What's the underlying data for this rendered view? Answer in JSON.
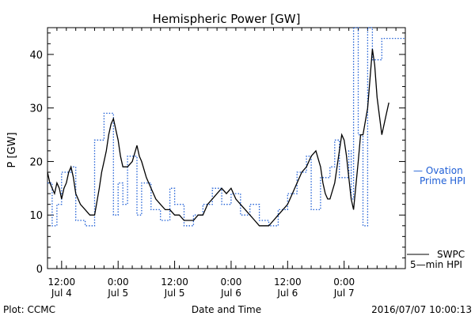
{
  "chart_data": {
    "type": "line",
    "title": "Hemispheric Power [GW]",
    "xlabel": "Date and Time",
    "ylabel": "P [GW]",
    "x_start": "2016-07-04 09:00",
    "x_end": "2016-07-07 13:00",
    "ylim": [
      0,
      45
    ],
    "y_ticks": [
      0,
      10,
      20,
      30,
      40
    ],
    "x_ticks": [
      {
        "t": "2016-07-04 12:00",
        "time": "12:00",
        "date": "Jul 4"
      },
      {
        "t": "2016-07-05 00:00",
        "time": "0:00",
        "date": "Jul 5"
      },
      {
        "t": "2016-07-05 12:00",
        "time": "12:00",
        "date": "Jul 5"
      },
      {
        "t": "2016-07-06 00:00",
        "time": "0:00",
        "date": "Jul 6"
      },
      {
        "t": "2016-07-06 12:00",
        "time": "12:00",
        "date": "Jul 6"
      },
      {
        "t": "2016-07-07 00:00",
        "time": "0:00",
        "date": "Jul 7"
      }
    ],
    "grid": false,
    "series": [
      {
        "name": "SWPC 5-min HPI",
        "color": "#000000",
        "style": "solid",
        "points": [
          [
            "2016-07-04 09:00",
            18
          ],
          [
            "2016-07-04 09:30",
            16
          ],
          [
            "2016-07-04 10:00",
            15
          ],
          [
            "2016-07-04 10:30",
            14
          ],
          [
            "2016-07-04 11:00",
            16
          ],
          [
            "2016-07-04 11:30",
            15
          ],
          [
            "2016-07-04 12:00",
            13
          ],
          [
            "2016-07-04 12:30",
            15
          ],
          [
            "2016-07-04 13:00",
            16
          ],
          [
            "2016-07-04 13:30",
            18
          ],
          [
            "2016-07-04 14:00",
            19
          ],
          [
            "2016-07-04 14:30",
            17
          ],
          [
            "2016-07-04 15:00",
            14
          ],
          [
            "2016-07-04 16:00",
            12
          ],
          [
            "2016-07-04 17:00",
            11
          ],
          [
            "2016-07-04 18:00",
            10
          ],
          [
            "2016-07-04 19:00",
            10
          ],
          [
            "2016-07-04 20:00",
            15
          ],
          [
            "2016-07-04 20:30",
            18
          ],
          [
            "2016-07-04 21:00",
            20
          ],
          [
            "2016-07-04 21:30",
            22
          ],
          [
            "2016-07-04 22:00",
            25
          ],
          [
            "2016-07-04 22:30",
            27
          ],
          [
            "2016-07-04 23:00",
            28
          ],
          [
            "2016-07-04 23:30",
            26
          ],
          [
            "2016-07-05 00:00",
            24
          ],
          [
            "2016-07-05 00:30",
            21
          ],
          [
            "2016-07-05 01:00",
            19
          ],
          [
            "2016-07-05 02:00",
            19
          ],
          [
            "2016-07-05 03:00",
            20
          ],
          [
            "2016-07-05 04:00",
            23
          ],
          [
            "2016-07-05 04:30",
            21
          ],
          [
            "2016-07-05 05:00",
            20
          ],
          [
            "2016-07-05 06:00",
            17
          ],
          [
            "2016-07-05 07:00",
            15
          ],
          [
            "2016-07-05 08:00",
            13
          ],
          [
            "2016-07-05 09:00",
            12
          ],
          [
            "2016-07-05 10:00",
            11
          ],
          [
            "2016-07-05 11:00",
            11
          ],
          [
            "2016-07-05 12:00",
            10
          ],
          [
            "2016-07-05 13:00",
            10
          ],
          [
            "2016-07-05 14:00",
            9
          ],
          [
            "2016-07-05 15:00",
            9
          ],
          [
            "2016-07-05 16:00",
            9
          ],
          [
            "2016-07-05 17:00",
            10
          ],
          [
            "2016-07-05 18:00",
            10
          ],
          [
            "2016-07-05 19:00",
            12
          ],
          [
            "2016-07-05 20:00",
            13
          ],
          [
            "2016-07-05 21:00",
            14
          ],
          [
            "2016-07-05 22:00",
            15
          ],
          [
            "2016-07-05 23:00",
            14
          ],
          [
            "2016-07-06 00:00",
            15
          ],
          [
            "2016-07-06 01:00",
            13
          ],
          [
            "2016-07-06 02:00",
            12
          ],
          [
            "2016-07-06 03:00",
            11
          ],
          [
            "2016-07-06 04:00",
            10
          ],
          [
            "2016-07-06 05:00",
            9
          ],
          [
            "2016-07-06 06:00",
            8
          ],
          [
            "2016-07-06 07:00",
            8
          ],
          [
            "2016-07-06 08:00",
            8
          ],
          [
            "2016-07-06 09:00",
            9
          ],
          [
            "2016-07-06 10:00",
            10
          ],
          [
            "2016-07-06 11:00",
            11
          ],
          [
            "2016-07-06 12:00",
            12
          ],
          [
            "2016-07-06 13:00",
            14
          ],
          [
            "2016-07-06 14:00",
            16
          ],
          [
            "2016-07-06 15:00",
            18
          ],
          [
            "2016-07-06 16:00",
            19
          ],
          [
            "2016-07-06 17:00",
            21
          ],
          [
            "2016-07-06 18:00",
            22
          ],
          [
            "2016-07-06 19:00",
            19
          ],
          [
            "2016-07-06 19:30",
            16
          ],
          [
            "2016-07-06 20:00",
            14
          ],
          [
            "2016-07-06 20:30",
            13
          ],
          [
            "2016-07-06 21:00",
            13
          ],
          [
            "2016-07-06 22:00",
            16
          ],
          [
            "2016-07-06 23:00",
            22
          ],
          [
            "2016-07-06 23:30",
            25
          ],
          [
            "2016-07-07 00:00",
            24
          ],
          [
            "2016-07-07 00:30",
            21
          ],
          [
            "2016-07-07 01:00",
            17
          ],
          [
            "2016-07-07 01:30",
            13
          ],
          [
            "2016-07-07 02:00",
            11
          ],
          [
            "2016-07-07 03:00",
            20
          ],
          [
            "2016-07-07 03:30",
            25
          ],
          [
            "2016-07-07 04:00",
            25
          ],
          [
            "2016-07-07 05:00",
            30
          ],
          [
            "2016-07-07 06:00",
            41
          ],
          [
            "2016-07-07 06:30",
            38
          ],
          [
            "2016-07-07 07:00",
            32
          ],
          [
            "2016-07-07 08:00",
            25
          ],
          [
            "2016-07-07 09:00",
            29
          ],
          [
            "2016-07-07 09:30",
            31
          ]
        ]
      },
      {
        "name": "Ovation Prime HPI",
        "color": "#1f5fd6",
        "style": "dotted",
        "points": [
          [
            "2016-07-04 09:00",
            16
          ],
          [
            "2016-07-04 10:00",
            8
          ],
          [
            "2016-07-04 11:00",
            12
          ],
          [
            "2016-07-04 12:00",
            18
          ],
          [
            "2016-07-04 14:00",
            19
          ],
          [
            "2016-07-04 15:00",
            9
          ],
          [
            "2016-07-04 17:00",
            8
          ],
          [
            "2016-07-04 19:00",
            24
          ],
          [
            "2016-07-04 21:00",
            29
          ],
          [
            "2016-07-04 23:00",
            10
          ],
          [
            "2016-07-05 00:00",
            16
          ],
          [
            "2016-07-05 01:00",
            12
          ],
          [
            "2016-07-05 02:00",
            21
          ],
          [
            "2016-07-05 04:00",
            10
          ],
          [
            "2016-07-05 05:00",
            16
          ],
          [
            "2016-07-05 07:00",
            11
          ],
          [
            "2016-07-05 09:00",
            9
          ],
          [
            "2016-07-05 11:00",
            15
          ],
          [
            "2016-07-05 12:00",
            12
          ],
          [
            "2016-07-05 14:00",
            8
          ],
          [
            "2016-07-05 16:00",
            10
          ],
          [
            "2016-07-05 18:00",
            12
          ],
          [
            "2016-07-05 20:00",
            15
          ],
          [
            "2016-07-05 22:00",
            12
          ],
          [
            "2016-07-06 00:00",
            14
          ],
          [
            "2016-07-06 02:00",
            10
          ],
          [
            "2016-07-06 04:00",
            12
          ],
          [
            "2016-07-06 06:00",
            9
          ],
          [
            "2016-07-06 08:00",
            8
          ],
          [
            "2016-07-06 10:00",
            11
          ],
          [
            "2016-07-06 12:00",
            14
          ],
          [
            "2016-07-06 14:00",
            18
          ],
          [
            "2016-07-06 16:00",
            21
          ],
          [
            "2016-07-06 17:00",
            11
          ],
          [
            "2016-07-06 19:00",
            17
          ],
          [
            "2016-07-06 21:00",
            19
          ],
          [
            "2016-07-06 22:00",
            24
          ],
          [
            "2016-07-06 23:00",
            17
          ],
          [
            "2016-07-07 01:00",
            22
          ],
          [
            "2016-07-07 01:30",
            13
          ],
          [
            "2016-07-07 02:00",
            45
          ],
          [
            "2016-07-07 03:00",
            25
          ],
          [
            "2016-07-07 04:00",
            8
          ],
          [
            "2016-07-07 05:00",
            45
          ],
          [
            "2016-07-07 06:00",
            39
          ],
          [
            "2016-07-07 08:00",
            43
          ]
        ]
      }
    ],
    "legend": {
      "ovation": [
        "— Ovation",
        "Prime HPI"
      ],
      "swpc": [
        "SWPC",
        "5—min HPI"
      ]
    }
  },
  "footer": {
    "plot_source": "Plot: CCMC",
    "timestamp": "2016/07/07 10:00:13"
  }
}
